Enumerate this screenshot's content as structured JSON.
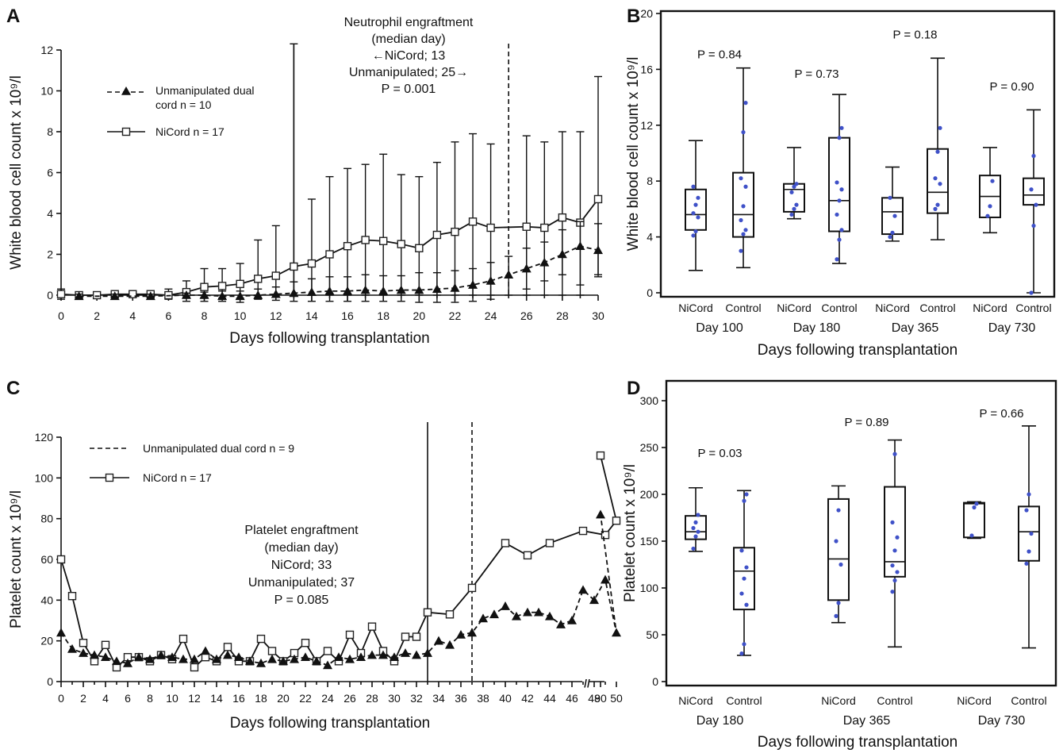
{
  "chart_data": [
    {
      "id": "A",
      "type": "line",
      "panel_label": "A",
      "xlabel": "Days following transplantation",
      "ylabel": "White blood cell count x 10⁹/l",
      "xlim": [
        0,
        30
      ],
      "ylim": [
        0,
        12
      ],
      "x_ticks": [
        "0",
        "2",
        "4",
        "6",
        "8",
        "10",
        "12",
        "14",
        "16",
        "18",
        "20",
        "22",
        "24",
        "26",
        "28",
        "30"
      ],
      "y_ticks": [
        "0",
        "2",
        "4",
        "6",
        "8",
        "10",
        "12"
      ],
      "legend": [
        {
          "label_line1": "Unmanipulated dual",
          "label_line2": "cord n = 10",
          "style": "dashed-triangle"
        },
        {
          "label": "NiCord n = 17",
          "style": "solid-square"
        }
      ],
      "annotation": {
        "lines": [
          "Neutrophil engraftment",
          "(median day)",
          "←NiCord; 13",
          "Unmanipulated; 25→",
          "P = 0.001"
        ]
      },
      "vlines": [
        {
          "x": 13,
          "style": "solid"
        },
        {
          "x": 25,
          "style": "dashed"
        }
      ],
      "series": [
        {
          "name": "NiCord n = 17",
          "x": [
            0,
            1,
            2,
            3,
            4,
            5,
            6,
            7,
            8,
            9,
            10,
            11,
            12,
            13,
            14,
            15,
            16,
            17,
            18,
            19,
            20,
            21,
            22,
            23,
            24,
            26,
            27,
            28,
            29,
            30
          ],
          "y": [
            0.05,
            0,
            0,
            0.05,
            0.05,
            0.05,
            0,
            0.15,
            0.4,
            0.45,
            0.55,
            0.8,
            0.95,
            1.4,
            1.55,
            2.0,
            2.4,
            2.7,
            2.65,
            2.5,
            2.3,
            2.95,
            3.1,
            3.6,
            3.3,
            3.35,
            3.3,
            3.8,
            3.55,
            4.7
          ],
          "err_upper": [
            0.3,
            0,
            0.1,
            0.15,
            0.2,
            0.2,
            0.3,
            0.7,
            1.3,
            1.3,
            1.55,
            2.7,
            3.4,
            12.3,
            4.7,
            5.8,
            6.2,
            6.4,
            6.9,
            5.9,
            5.8,
            6.5,
            7.5,
            7.9,
            7.4,
            7.8,
            7.5,
            8.0,
            8.0,
            10.7
          ],
          "err_lower": [
            -0.2,
            0,
            -0.1,
            0,
            0,
            0,
            -0.2,
            -0.3,
            -0.3,
            -0.3,
            -0.35,
            0,
            0,
            0,
            0,
            0,
            0,
            0,
            0,
            0,
            0,
            0,
            0,
            0,
            0,
            0,
            0,
            0,
            0,
            0.9
          ]
        },
        {
          "name": "Unmanipulated dual cord n = 10",
          "x": [
            1,
            3,
            5,
            7,
            8,
            9,
            10,
            11,
            12,
            13,
            14,
            15,
            16,
            17,
            18,
            19,
            20,
            21,
            22,
            23,
            24,
            25,
            26,
            27,
            28,
            29,
            30
          ],
          "y": [
            -0.05,
            -0.05,
            -0.05,
            0,
            0,
            -0.05,
            -0.05,
            0,
            0.05,
            0.1,
            0.15,
            0.2,
            0.2,
            0.25,
            0.2,
            0.25,
            0.25,
            0.3,
            0.35,
            0.5,
            0.7,
            1.0,
            1.3,
            1.6,
            2.0,
            2.4,
            2.2
          ],
          "err_upper": [
            0.05,
            0.05,
            0.05,
            0.1,
            0.15,
            0.2,
            0.2,
            0.3,
            0.4,
            0.65,
            0.8,
            0.9,
            0.9,
            1.0,
            0.95,
            0.95,
            1.1,
            1.1,
            1.2,
            1.3,
            1.6,
            1.9,
            2.3,
            2.6,
            3.2,
            3.6,
            3.5
          ],
          "err_lower": [
            -0.1,
            -0.1,
            -0.1,
            -0.1,
            -0.1,
            -0.15,
            -0.15,
            -0.2,
            -0.25,
            -0.3,
            -0.3,
            -0.3,
            -0.3,
            -0.3,
            -0.3,
            -0.3,
            -0.35,
            -0.35,
            -0.35,
            -0.3,
            -0.2,
            0,
            0.3,
            0.7,
            1.0,
            0.5,
            1.0
          ]
        }
      ]
    },
    {
      "id": "B",
      "type": "box",
      "panel_label": "B",
      "xlabel": "Days following transplantation",
      "ylabel": "White blood cell count x 10⁹/l",
      "ylim": [
        0,
        20
      ],
      "y_ticks": [
        "0",
        "4",
        "8",
        "12",
        "16",
        "20"
      ],
      "groups": [
        {
          "day": "Day 100",
          "p": "P = 0.84",
          "p_y": 16.8,
          "boxes": [
            {
              "label": "NiCord",
              "min": 1.6,
              "q1": 4.5,
              "median": 5.6,
              "q3": 7.4,
              "max": 10.9,
              "points": [
                4.1,
                4.4,
                5.4,
                5.7,
                6.3,
                6.8,
                7.6
              ]
            },
            {
              "label": "Control",
              "min": 1.8,
              "q1": 4.0,
              "median": 5.6,
              "q3": 8.6,
              "max": 16.1,
              "points": [
                3.0,
                4.2,
                4.5,
                5.2,
                6.2,
                7.6,
                8.2,
                11.5,
                13.6
              ]
            }
          ]
        },
        {
          "day": "Day 180",
          "p": "P = 0.73",
          "p_y": 15.4,
          "boxes": [
            {
              "label": "NiCord",
              "min": 5.3,
              "q1": 5.8,
              "median": 7.4,
              "q3": 7.8,
              "max": 10.4,
              "points": [
                5.6,
                6.0,
                6.3,
                7.2,
                7.6,
                7.8
              ]
            },
            {
              "label": "Control",
              "min": 2.1,
              "q1": 4.4,
              "median": 6.6,
              "q3": 11.1,
              "max": 14.2,
              "points": [
                2.4,
                3.8,
                4.5,
                5.6,
                6.6,
                7.4,
                7.9,
                11.1,
                11.8
              ]
            }
          ]
        },
        {
          "day": "Day 365",
          "p": "P = 0.18",
          "p_y": 18.2,
          "boxes": [
            {
              "label": "NiCord",
              "min": 3.7,
              "q1": 4.2,
              "median": 5.8,
              "q3": 6.8,
              "max": 9.0,
              "points": [
                4.0,
                4.3,
                5.5,
                6.8
              ]
            },
            {
              "label": "Control",
              "min": 3.8,
              "q1": 5.7,
              "median": 7.2,
              "q3": 10.3,
              "max": 16.8,
              "points": [
                6.0,
                6.3,
                7.8,
                8.2,
                10.1,
                11.8
              ]
            }
          ]
        },
        {
          "day": "Day 730",
          "p": "P = 0.90",
          "p_y": 14.5,
          "boxes": [
            {
              "label": "NiCord",
              "min": 4.3,
              "q1": 5.4,
              "median": 6.9,
              "q3": 8.4,
              "max": 10.4,
              "points": [
                5.5,
                6.2,
                8.0
              ]
            },
            {
              "label": "Control",
              "min": 0.0,
              "q1": 6.3,
              "median": 7.0,
              "q3": 8.2,
              "max": 13.1,
              "points": [
                0.0,
                4.8,
                6.3,
                7.4,
                9.8
              ]
            }
          ]
        }
      ]
    },
    {
      "id": "C",
      "type": "line",
      "panel_label": "C",
      "xlabel": "Days following transplantation",
      "ylabel": "Platelet count x 10⁹/l",
      "ylim": [
        0,
        120
      ],
      "x_ticks": [
        "0",
        "2",
        "4",
        "6",
        "8",
        "10",
        "12",
        "14",
        "16",
        "18",
        "20",
        "22",
        "24",
        "26",
        "28",
        "30",
        "32",
        "34",
        "36",
        "38",
        "40",
        "42",
        "44",
        "46",
        "48",
        "50",
        "90"
      ],
      "y_ticks": [
        "0",
        "20",
        "40",
        "60",
        "80",
        "100",
        "120"
      ],
      "axis_break": "//",
      "legend": [
        {
          "label": "Unmanipulated dual cord n = 9",
          "style": "dashed"
        },
        {
          "label": "NiCord n = 17",
          "style": "solid-square"
        }
      ],
      "annotation": {
        "lines": [
          "Platelet engraftment",
          "(median day)",
          "NiCord; 33",
          "Unmanipulated; 37",
          "P = 0.085"
        ]
      },
      "vlines": [
        {
          "x": 33,
          "style": "solid"
        },
        {
          "x": 37,
          "style": "dashed"
        }
      ],
      "series": [
        {
          "name": "NiCord n = 17",
          "x": [
            0,
            1,
            2,
            3,
            4,
            5,
            6,
            7,
            8,
            9,
            10,
            11,
            12,
            13,
            14,
            15,
            16,
            17,
            18,
            19,
            20,
            21,
            22,
            23,
            24,
            25,
            26,
            27,
            28,
            29,
            30,
            31,
            32,
            33,
            35,
            37,
            40,
            42,
            44,
            47,
            49,
            50,
            90
          ],
          "y": [
            60,
            42,
            19,
            10,
            18,
            7,
            12,
            12,
            10,
            13,
            11,
            21,
            7,
            12,
            10,
            17,
            10,
            10,
            21,
            15,
            10,
            14,
            19,
            10,
            15,
            10,
            23,
            14,
            27,
            15,
            10,
            22,
            22,
            34,
            33,
            46,
            68,
            62,
            68,
            74,
            72,
            79,
            111
          ]
        },
        {
          "name": "Unmanipulated dual cord n = 9",
          "x": [
            0,
            1,
            2,
            3,
            4,
            5,
            6,
            7,
            8,
            9,
            10,
            11,
            12,
            13,
            14,
            15,
            16,
            17,
            18,
            19,
            20,
            21,
            22,
            23,
            24,
            25,
            26,
            27,
            28,
            29,
            30,
            31,
            32,
            33,
            34,
            35,
            36,
            37,
            38,
            39,
            40,
            41,
            42,
            43,
            44,
            45,
            46,
            47,
            48,
            49,
            50,
            90
          ],
          "y": [
            24,
            16,
            14,
            13,
            12,
            10,
            9,
            12,
            11,
            13,
            12,
            11,
            11,
            15,
            11,
            13,
            12,
            10,
            9,
            11,
            10,
            11,
            12,
            10,
            8,
            12,
            11,
            12,
            13,
            13,
            12,
            14,
            13,
            14,
            20,
            18,
            23,
            24,
            31,
            33,
            37,
            32,
            34,
            34,
            32,
            28,
            30,
            45,
            40,
            50,
            24,
            82
          ]
        }
      ]
    },
    {
      "id": "D",
      "type": "box",
      "panel_label": "D",
      "xlabel": "Days following transplantation",
      "ylabel": "Platelet count x 10⁹/l",
      "ylim": [
        0,
        300
      ],
      "y_ticks": [
        "0",
        "50",
        "100",
        "150",
        "200",
        "250",
        "300"
      ],
      "groups": [
        {
          "day": "Day 180",
          "p": "P = 0.03",
          "p_y": 240,
          "boxes": [
            {
              "label": "NiCord",
              "min": 139,
              "q1": 152,
              "median": 160,
              "q3": 177,
              "max": 207,
              "points": [
                142,
                155,
                160,
                164,
                170,
                178
              ]
            },
            {
              "label": "Control",
              "min": 28,
              "q1": 77,
              "median": 118,
              "q3": 143,
              "max": 204,
              "points": [
                30,
                40,
                82,
                94,
                110,
                122,
                140,
                193,
                200
              ]
            }
          ]
        },
        {
          "day": "Day 365",
          "p": "P = 0.89",
          "p_y": 273,
          "boxes": [
            {
              "label": "NiCord",
              "min": 63,
              "q1": 87,
              "median": 131,
              "q3": 195,
              "max": 209,
              "points": [
                70,
                84,
                125,
                150,
                183
              ]
            },
            {
              "label": "Control",
              "min": 37,
              "q1": 112,
              "median": 128,
              "q3": 208,
              "max": 258,
              "points": [
                96,
                108,
                117,
                124,
                140,
                154,
                170,
                243
              ]
            }
          ]
        },
        {
          "day": "Day 730",
          "p": "P = 0.66",
          "p_y": 282,
          "boxes": [
            {
              "label": "NiCord",
              "min": 153,
              "q1": 154,
              "median": 190,
              "q3": 191,
              "max": 192,
              "points": [
                156,
                186,
                190
              ]
            },
            {
              "label": "Control",
              "min": 36,
              "q1": 129,
              "median": 160,
              "q3": 187,
              "max": 273,
              "points": [
                126,
                139,
                158,
                183,
                200
              ]
            }
          ]
        }
      ]
    }
  ]
}
